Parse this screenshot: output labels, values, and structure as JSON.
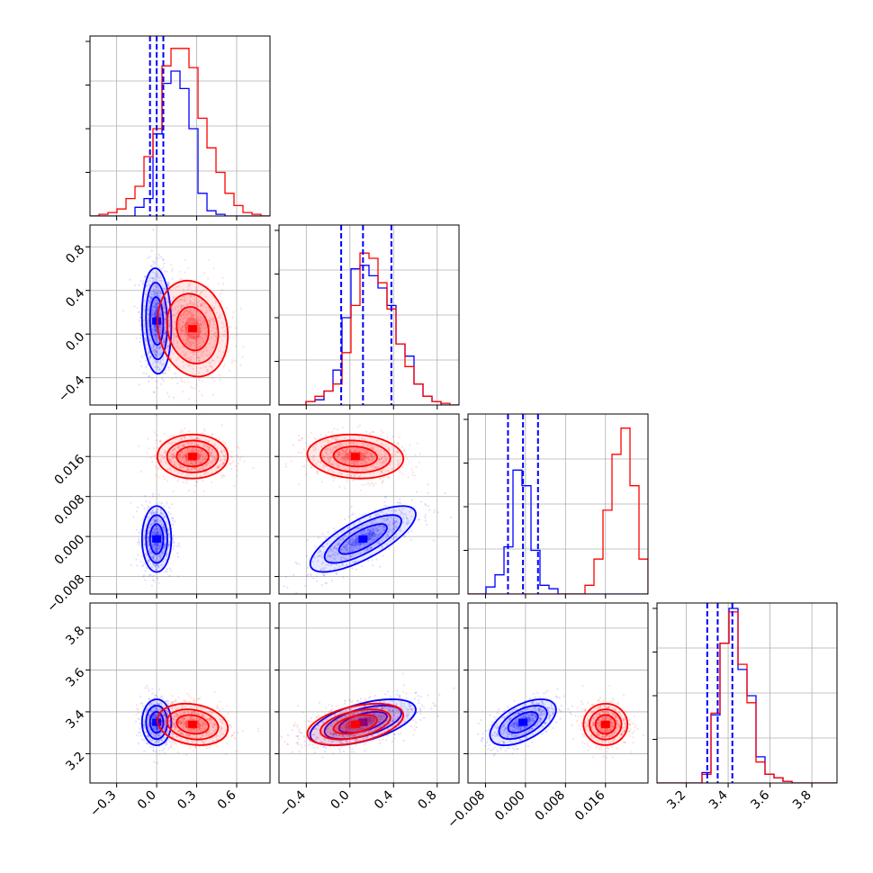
{
  "chart_data": {
    "type": "corner",
    "grid": true,
    "colors": {
      "series_a": "#0000ff",
      "series_b": "#ff0000"
    },
    "parameters": [
      {
        "range": [
          -0.5,
          0.85
        ],
        "ticks": [
          -0.3,
          0.0,
          0.3,
          0.6
        ],
        "tick_labels": [
          "−0.3",
          "0.0",
          "0.3",
          "0.6"
        ]
      },
      {
        "range": [
          -0.65,
          1.0
        ],
        "ticks": [
          -0.4,
          0.0,
          0.4,
          0.8
        ],
        "tick_labels": [
          "−0.4",
          "0.0",
          "0.4",
          "0.8"
        ]
      },
      {
        "range": [
          -0.0115,
          0.0245
        ],
        "ticks": [
          -0.008,
          0.0,
          0.008,
          0.016
        ],
        "tick_labels": [
          "−0.008",
          "0.000",
          "0.008",
          "0.016"
        ]
      },
      {
        "range": [
          3.06,
          3.92
        ],
        "ticks": [
          3.2,
          3.4,
          3.6,
          3.8
        ],
        "tick_labels": [
          "3.2",
          "3.4",
          "3.6",
          "3.8"
        ]
      }
    ],
    "series": [
      {
        "color": "#0000ff",
        "mean": [
          0.0,
          0.12,
          -0.0005,
          3.35
        ],
        "std": [
          0.05,
          0.22,
          0.003,
          0.05
        ],
        "corr": [
          [
            0,
            1,
            -0.1
          ],
          [
            0,
            2,
            0.0
          ],
          [
            0,
            3,
            0.0
          ],
          [
            1,
            2,
            0.75
          ],
          [
            1,
            3,
            0.55
          ],
          [
            2,
            3,
            0.55
          ]
        ],
        "quantiles": [
          [
            -0.05,
            0.0,
            0.05
          ],
          [
            -0.08,
            0.12,
            0.38
          ],
          [
            -0.0035,
            -0.0005,
            0.0025
          ],
          [
            3.3,
            3.35,
            3.42
          ]
        ],
        "hist": [
          [
            0,
            0,
            0,
            0,
            0,
            0.05,
            0.1,
            0.47,
            0.76,
            0.83,
            0.73,
            0.5,
            0.13,
            0.03,
            0.01,
            0,
            0,
            0,
            0,
            0
          ],
          [
            0,
            0,
            0,
            0.02,
            0.03,
            0.08,
            0.2,
            0.5,
            0.78,
            0.8,
            0.74,
            0.67,
            0.57,
            0.35,
            0.28,
            0.12,
            0.05,
            0.02,
            0,
            0
          ],
          [
            0,
            0,
            0.04,
            0.11,
            0.27,
            0.71,
            0.62,
            0.25,
            0.05,
            0.03,
            0,
            0,
            0,
            0,
            0,
            0,
            0,
            0,
            0,
            0
          ],
          [
            0,
            0,
            0,
            0,
            0,
            0.06,
            0.39,
            0.8,
            1.0,
            0.65,
            0.5,
            0.15,
            0.05,
            0.03,
            0.01,
            0,
            0,
            0,
            0,
            0
          ]
        ]
      },
      {
        "color": "#ff0000",
        "mean": [
          0.27,
          0.05,
          0.016,
          3.34
        ],
        "std": [
          0.12,
          0.2,
          0.002,
          0.045
        ],
        "corr": [
          [
            0,
            1,
            -0.15
          ],
          [
            0,
            2,
            0.0
          ],
          [
            0,
            3,
            -0.2
          ],
          [
            1,
            2,
            -0.1
          ],
          [
            1,
            3,
            0.45
          ],
          [
            2,
            3,
            0.0
          ]
        ],
        "hist": [
          [
            0,
            0.01,
            0.02,
            0.04,
            0.1,
            0.17,
            0.34,
            0.5,
            0.86,
            0.96,
            0.96,
            0.85,
            0.56,
            0.39,
            0.25,
            0.13,
            0.06,
            0.02,
            0.01,
            0
          ],
          [
            0,
            0,
            0,
            0.02,
            0.05,
            0.08,
            0.12,
            0.3,
            0.57,
            0.87,
            0.84,
            0.7,
            0.55,
            0.35,
            0.22,
            0.12,
            0.05,
            0.02,
            0.01,
            0
          ],
          [
            0,
            0,
            0,
            0,
            0,
            0,
            0,
            0,
            0,
            0,
            0,
            0,
            0,
            0.05,
            0.2,
            0.48,
            0.8,
            0.95,
            0.62,
            0.2
          ],
          [
            0,
            0,
            0,
            0,
            0,
            0.05,
            0.4,
            0.8,
            0.98,
            0.68,
            0.46,
            0.12,
            0.05,
            0.03,
            0.01,
            0,
            0,
            0,
            0,
            0
          ]
        ]
      }
    ]
  }
}
